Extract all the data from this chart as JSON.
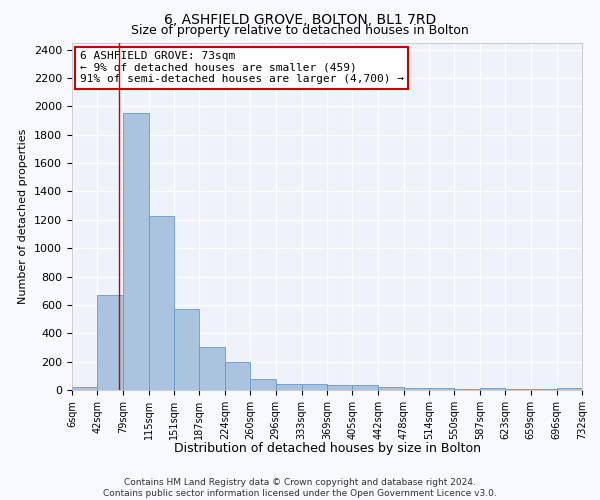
{
  "title": "6, ASHFIELD GROVE, BOLTON, BL1 7RD",
  "subtitle": "Size of property relative to detached houses in Bolton",
  "xlabel": "Distribution of detached houses by size in Bolton",
  "ylabel": "Number of detached properties",
  "bin_edges": [
    6,
    42,
    79,
    115,
    151,
    187,
    224,
    260,
    296,
    333,
    369,
    405,
    442,
    478,
    514,
    550,
    587,
    623,
    659,
    696,
    732
  ],
  "bar_heights": [
    20,
    670,
    1950,
    1230,
    570,
    305,
    200,
    80,
    40,
    45,
    35,
    35,
    20,
    15,
    15,
    5,
    15,
    5,
    5,
    15
  ],
  "bar_color": "#aac4e0",
  "bar_edgecolor": "#6699cc",
  "bg_color": "#eef2fa",
  "grid_color": "#ffffff",
  "red_line_x": 73,
  "annotation_line1": "6 ASHFIELD GROVE: 73sqm",
  "annotation_line2": "← 9% of detached houses are smaller (459)",
  "annotation_line3": "91% of semi-detached houses are larger (4,700) →",
  "annotation_box_color": "#ffffff",
  "annotation_box_edgecolor": "#cc0000",
  "ylim": [
    0,
    2450
  ],
  "yticks": [
    0,
    200,
    400,
    600,
    800,
    1000,
    1200,
    1400,
    1600,
    1800,
    2000,
    2200,
    2400
  ],
  "tick_labels": [
    "6sqm",
    "42sqm",
    "79sqm",
    "115sqm",
    "151sqm",
    "187sqm",
    "224sqm",
    "260sqm",
    "296sqm",
    "333sqm",
    "369sqm",
    "405sqm",
    "442sqm",
    "478sqm",
    "514sqm",
    "550sqm",
    "587sqm",
    "623sqm",
    "659sqm",
    "696sqm",
    "732sqm"
  ],
  "footnote": "Contains HM Land Registry data © Crown copyright and database right 2024.\nContains public sector information licensed under the Open Government Licence v3.0.",
  "title_fontsize": 10,
  "subtitle_fontsize": 9,
  "xlabel_fontsize": 9,
  "ylabel_fontsize": 8,
  "ytick_fontsize": 8,
  "xtick_fontsize": 7,
  "annotation_fontsize": 8,
  "footnote_fontsize": 6.5
}
